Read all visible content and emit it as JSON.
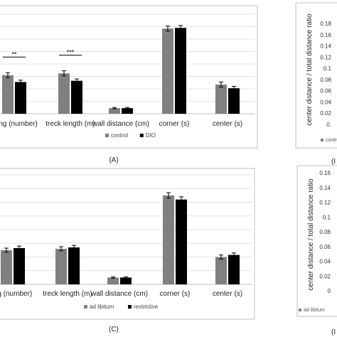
{
  "panel_labels": {
    "a": "(A)",
    "c": "(C)",
    "b_partial": "(I",
    "d_partial": "(I"
  },
  "colors": {
    "control": "#808080",
    "treatment": "#000000",
    "frame": "#bfbfbf",
    "grid": "#e3e3e3",
    "text": "#222222"
  },
  "chart_data": [
    {
      "panel": "A",
      "type": "bar",
      "categories": [
        "rearing (number)",
        "treck length (m)",
        "wall distance (cm)",
        "corner (s)",
        "center (s)"
      ],
      "visible_category_labels": [
        "aring (number)",
        "treck length (m)",
        "wall distance (cm)",
        "corner (s)",
        "center (s)"
      ],
      "series": [
        {
          "name": "control",
          "values": [
            62,
            65,
            9,
            137,
            47
          ],
          "errors": [
            4,
            4,
            1,
            4,
            4
          ]
        },
        {
          "name": "DIO",
          "values": [
            51,
            53,
            9,
            138,
            41
          ],
          "errors": [
            3,
            3,
            1,
            4,
            3
          ]
        }
      ],
      "ylim": [
        0,
        160
      ],
      "grid": true,
      "annotations": [
        {
          "category": "rearing (number)",
          "text": "**"
        },
        {
          "category": "treck length (m)",
          "text": "***"
        }
      ],
      "legend": {
        "placement": "bottom-center",
        "labels": [
          "control",
          "DIO"
        ]
      }
    },
    {
      "panel": "C",
      "type": "bar",
      "categories": [
        "rearing (number)",
        "treck length (m)",
        "wall distance (cm)",
        "corner (s)",
        "center (s)"
      ],
      "visible_category_labels": [
        "ag (number)",
        "treck length (m)",
        "wall distance (cm)",
        "corner (s)",
        "center (s)"
      ],
      "series": [
        {
          "name": "ad libitum",
          "values": [
            50,
            52,
            10,
            130,
            40
          ],
          "errors": [
            3,
            3,
            1,
            4,
            3
          ]
        },
        {
          "name": "restrictive",
          "values": [
            53,
            54,
            10,
            124,
            43
          ],
          "errors": [
            3,
            3,
            1,
            4,
            3
          ]
        }
      ],
      "ylim": [
        0,
        160
      ],
      "grid": true,
      "legend": {
        "placement": "bottom-center",
        "labels": [
          "ad libitum",
          "restrictive"
        ]
      }
    },
    {
      "panel": "B",
      "type": "bar",
      "ylabel": "center distance / total distance ratio",
      "yticks": [
        "0.18",
        "0.16",
        "0.14",
        "0.12",
        "0.1",
        "0.08",
        "0.06",
        "0.04",
        "0.02",
        "0."
      ],
      "ylim": [
        0,
        0.18
      ],
      "legend": {
        "placement": "bottom",
        "labels": [
          "contro"
        ]
      }
    },
    {
      "panel": "D",
      "type": "bar",
      "ylabel": "center distance / total distance ratio",
      "yticks": [
        "0.16",
        "0.14",
        "0.12",
        "0.1",
        "0.08",
        "0.06",
        "0.04",
        "0.02",
        "0"
      ],
      "ylim": [
        0,
        0.16
      ],
      "legend": {
        "placement": "bottom",
        "labels": [
          "ad libitum"
        ]
      }
    }
  ]
}
